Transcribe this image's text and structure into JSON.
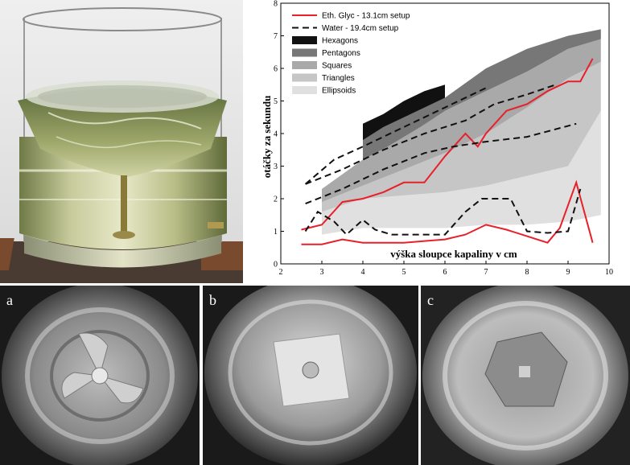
{
  "panels": {
    "a": "a",
    "b": "b",
    "c": "c"
  },
  "colors": {
    "hexagons": "#111111",
    "pentagons": "#777777",
    "squares": "#a9a9a9",
    "triangles": "#c6c6c6",
    "ellipsoids": "#e0e0e0",
    "eth_glyc": "#e8202a",
    "water": "#111111"
  },
  "chart_data": {
    "type": "area",
    "title": "",
    "xlabel": "výška sloupce kapaliny v cm",
    "ylabel": "otáčky za sekundu",
    "xlim": [
      2,
      10
    ],
    "ylim": [
      0,
      8
    ],
    "xticks": [
      2,
      3,
      4,
      5,
      6,
      7,
      8,
      9,
      10
    ],
    "yticks": [
      0,
      1,
      2,
      3,
      4,
      5,
      6,
      7,
      8
    ],
    "grid": false,
    "legend_position": "top-left",
    "bands": [
      {
        "name": "Ellipsoids",
        "x": [
          3,
          4,
          5,
          6,
          7,
          8,
          9,
          9.8
        ],
        "lower": [
          0.9,
          1.1,
          1.1,
          1.1,
          1.2,
          1.2,
          1.3,
          1.5
        ],
        "upper": [
          1.6,
          2.0,
          2.1,
          2.2,
          2.4,
          2.7,
          3.0,
          4.7
        ]
      },
      {
        "name": "Triangles",
        "x": [
          3,
          4,
          5,
          6,
          7,
          8,
          9,
          9.8
        ],
        "lower": [
          1.6,
          2.0,
          2.1,
          2.2,
          2.4,
          2.7,
          3.0,
          4.7
        ],
        "upper": [
          1.9,
          2.4,
          2.9,
          3.4,
          4.0,
          4.8,
          5.7,
          6.2
        ]
      },
      {
        "name": "Squares",
        "x": [
          3,
          4,
          5,
          6,
          7,
          8,
          9,
          9.8
        ],
        "lower": [
          1.9,
          2.4,
          2.9,
          3.4,
          4.0,
          4.8,
          5.7,
          6.2
        ],
        "upper": [
          2.3,
          3.2,
          4.0,
          4.7,
          5.3,
          5.9,
          6.6,
          6.9
        ]
      },
      {
        "name": "Pentagons",
        "x": [
          4,
          4.6,
          5.4,
          6,
          7,
          8,
          9,
          9.8
        ],
        "lower": [
          3.2,
          3.6,
          4.2,
          4.7,
          5.3,
          5.9,
          6.6,
          6.9
        ],
        "upper": [
          3.8,
          4.3,
          4.8,
          5.1,
          6.0,
          6.6,
          7.0,
          7.2
        ]
      },
      {
        "name": "Hexagons",
        "x": [
          4,
          4.5,
          5,
          5.5,
          6
        ],
        "lower": [
          3.8,
          4.2,
          4.5,
          4.8,
          5.1
        ],
        "upper": [
          4.3,
          4.6,
          5.0,
          5.3,
          5.5
        ]
      }
    ],
    "series": [
      {
        "name": "Eth. Glyc - 13.1cm setup",
        "style": "solid",
        "x": [
          2.5,
          3,
          3.5,
          4,
          4.5,
          5,
          5.5,
          6,
          6.5,
          7,
          7.5,
          8,
          8.5,
          8.8,
          9.2,
          9.6
        ],
        "y": [
          0.6,
          0.6,
          0.75,
          0.65,
          0.65,
          0.65,
          0.7,
          0.75,
          0.9,
          1.2,
          1.05,
          0.85,
          0.65,
          1.1,
          2.5,
          0.65
        ]
      },
      {
        "name": "Eth. Glyc - 13.1cm setup",
        "style": "solid",
        "x": [
          2.5,
          3,
          3.5,
          4,
          4.5,
          5,
          5.5,
          6,
          6.5,
          6.8,
          7,
          7.5,
          8,
          8.5,
          9,
          9.3,
          9.6
        ],
        "y": [
          1.05,
          1.2,
          1.9,
          2.0,
          2.2,
          2.5,
          2.5,
          3.3,
          4.0,
          3.6,
          4.0,
          4.7,
          4.9,
          5.3,
          5.6,
          5.6,
          6.3
        ]
      },
      {
        "name": "Water - 19.4cm setup",
        "style": "dashed",
        "x": [
          2.6,
          2.9,
          3.3,
          3.6,
          4.0,
          4.3,
          4.7,
          5.2,
          5.5,
          6.0,
          6.5,
          6.9,
          7.3,
          7.6,
          8.0,
          8.5,
          9.0,
          9.3
        ],
        "y": [
          1.0,
          1.6,
          1.3,
          0.9,
          1.35,
          1.05,
          0.9,
          0.9,
          0.9,
          0.9,
          1.6,
          2.0,
          2.0,
          2.0,
          1.0,
          0.95,
          1.0,
          2.3
        ]
      },
      {
        "name": "Water - 19.4cm setup",
        "style": "dashed",
        "x": [
          2.6,
          3.5,
          4.5,
          5.5,
          6.2,
          7,
          8,
          9.2
        ],
        "y": [
          1.85,
          2.3,
          2.9,
          3.4,
          3.6,
          3.75,
          3.9,
          4.3
        ]
      },
      {
        "name": "Water - 19.4cm setup",
        "style": "dashed",
        "x": [
          2.6,
          3.5,
          4.5,
          5.5,
          6.5,
          7.2,
          8,
          8.7
        ],
        "y": [
          2.45,
          2.9,
          3.5,
          4.0,
          4.4,
          4.9,
          5.2,
          5.5
        ]
      },
      {
        "name": "Water - 19.4cm setup",
        "style": "dashed",
        "x": [
          2.6,
          3.3,
          4.0,
          5.0,
          6.0,
          7.0
        ],
        "y": [
          2.45,
          3.2,
          3.6,
          4.2,
          4.8,
          5.4
        ]
      }
    ],
    "legend": [
      {
        "label": "Eth. Glyc - 13.1cm setup",
        "kind": "line-solid"
      },
      {
        "label": "Water - 19.4cm setup",
        "kind": "line-dashed"
      },
      {
        "label": "Hexagons",
        "kind": "patch",
        "band": "Hexagons"
      },
      {
        "label": "Pentagons",
        "kind": "patch",
        "band": "Pentagons"
      },
      {
        "label": "Squares",
        "kind": "patch",
        "band": "Squares"
      },
      {
        "label": "Triangles",
        "kind": "patch",
        "band": "Triangles"
      },
      {
        "label": "Ellipsoids",
        "kind": "patch",
        "band": "Ellipsoids"
      }
    ]
  }
}
